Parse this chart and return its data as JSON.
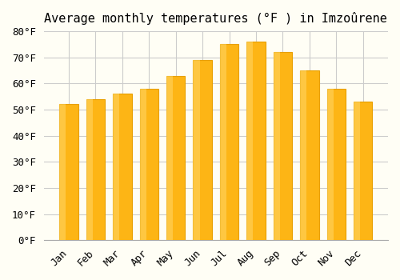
{
  "title": "Average monthly temperatures (°F ) in Imzoûrene",
  "months": [
    "Jan",
    "Feb",
    "Mar",
    "Apr",
    "May",
    "Jun",
    "Jul",
    "Aug",
    "Sep",
    "Oct",
    "Nov",
    "Dec"
  ],
  "values": [
    52,
    54,
    56,
    58,
    63,
    69,
    75,
    76,
    72,
    65,
    58,
    53
  ],
  "bar_color": "#FDB515",
  "bar_edge_color": "#E8A000",
  "background_color": "#FFFEF5",
  "grid_color": "#CCCCCC",
  "ylim": [
    0,
    80
  ],
  "ytick_step": 10,
  "title_fontsize": 11,
  "tick_fontsize": 9,
  "font_family": "monospace"
}
